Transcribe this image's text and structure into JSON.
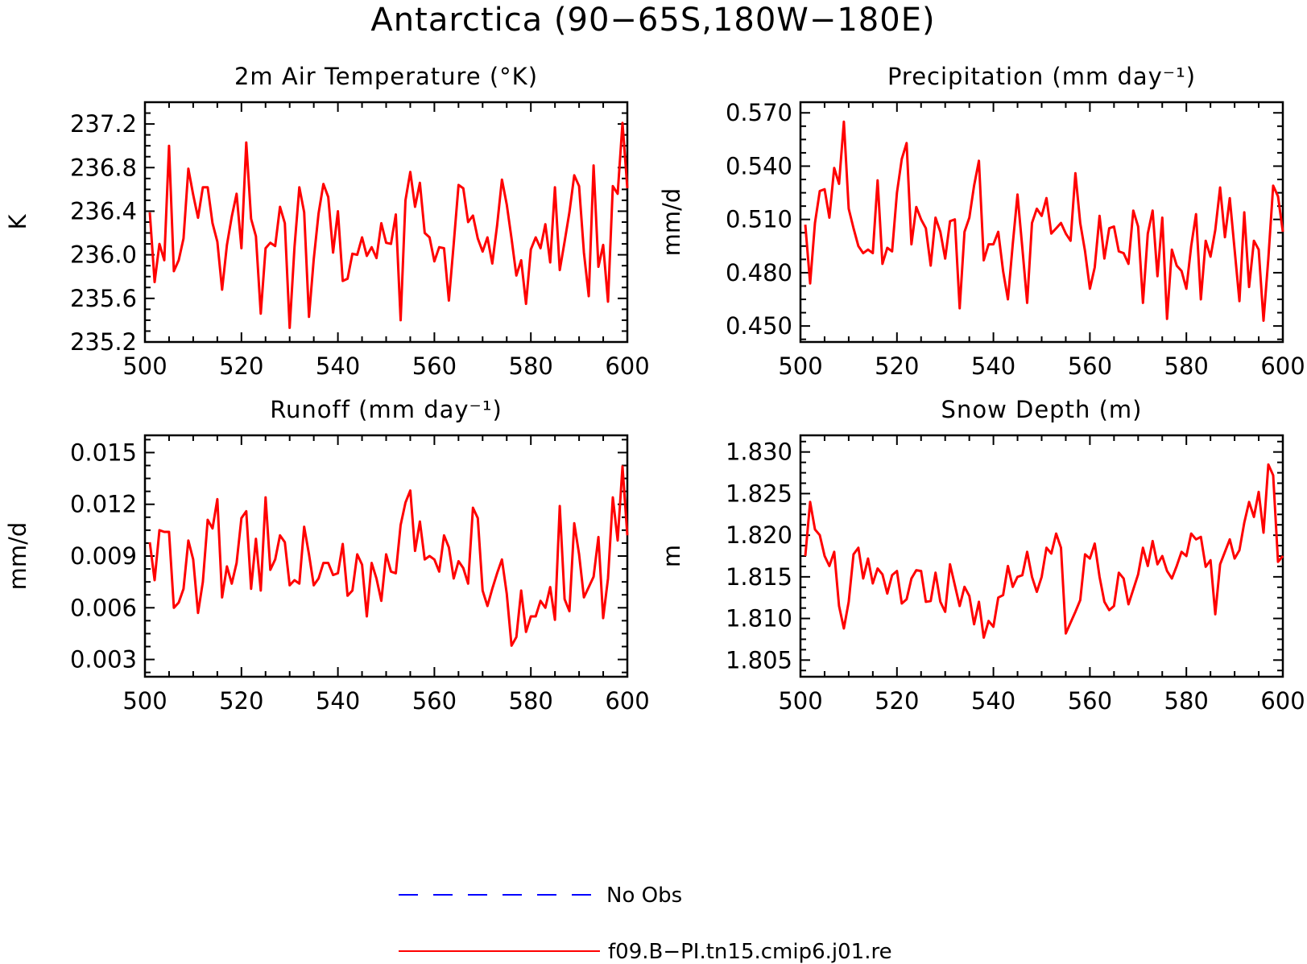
{
  "figure_title": "Antarctica (90−65S,180W−180E)",
  "colors": {
    "model": "#ff0000",
    "obs": "#0000ff",
    "frame": "#000000"
  },
  "legend": [
    {
      "label": "No Obs",
      "style": "dashed",
      "color": "#0000ff"
    },
    {
      "label": "f09.B−PI.tn15.cmip6.j01.re",
      "style": "solid",
      "color": "#ff0000"
    }
  ],
  "chart_data": [
    {
      "type": "line",
      "title": "2m Air Temperature (°K)",
      "ylabel": "K",
      "xlim": [
        500,
        600
      ],
      "ylim": [
        235.2,
        237.4
      ],
      "xticks": [
        500,
        520,
        540,
        560,
        580,
        600
      ],
      "xtick_labels": [
        "500",
        "520",
        "540",
        "560",
        "580",
        "600"
      ],
      "yticks": [
        235.2,
        235.6,
        236.0,
        236.4,
        236.8,
        237.2
      ],
      "ytick_labels": [
        "235.2",
        "235.6",
        "236.0",
        "236.4",
        "236.8",
        "237.2"
      ],
      "x_start": 501,
      "series": [
        {
          "color": "#ff0000",
          "values": [
            236.39,
            235.75,
            236.1,
            235.95,
            237.0,
            235.85,
            235.95,
            236.15,
            236.79,
            236.55,
            236.34,
            236.62,
            236.62,
            236.29,
            236.12,
            235.68,
            236.09,
            236.35,
            236.56,
            236.06,
            237.03,
            236.33,
            236.17,
            235.46,
            236.06,
            236.11,
            236.08,
            236.44,
            236.29,
            235.33,
            236.07,
            236.62,
            236.39,
            235.43,
            235.96,
            236.38,
            236.65,
            236.53,
            236.02,
            236.4,
            235.76,
            235.78,
            236.01,
            236.0,
            236.16,
            235.99,
            236.07,
            235.97,
            236.29,
            236.11,
            236.1,
            236.37,
            235.4,
            236.5,
            236.76,
            236.44,
            236.66,
            236.2,
            236.16,
            235.94,
            236.07,
            236.06,
            235.58,
            236.1,
            236.64,
            236.61,
            236.3,
            236.36,
            236.15,
            236.03,
            236.16,
            235.92,
            236.27,
            236.69,
            236.46,
            236.15,
            235.81,
            235.95,
            235.55,
            236.05,
            236.16,
            236.06,
            236.28,
            235.93,
            236.62,
            235.86,
            236.12,
            236.39,
            236.73,
            236.63,
            236.02,
            235.62,
            236.82,
            235.89,
            236.09,
            235.57,
            236.63,
            236.56,
            237.21,
            236.61
          ]
        }
      ]
    },
    {
      "type": "line",
      "title": "Precipitation (mm day⁻¹)",
      "ylabel": "mm/d",
      "xlim": [
        500,
        600
      ],
      "ylim": [
        0.441,
        0.576
      ],
      "xticks": [
        500,
        520,
        540,
        560,
        580,
        600
      ],
      "xtick_labels": [
        "500",
        "520",
        "540",
        "560",
        "580",
        "600"
      ],
      "yticks": [
        0.45,
        0.48,
        0.51,
        0.54,
        0.57
      ],
      "ytick_labels": [
        "0.450",
        "0.480",
        "0.510",
        "0.540",
        "0.570"
      ],
      "x_start": 501,
      "series": [
        {
          "color": "#ff0000",
          "values": [
            0.507,
            0.474,
            0.508,
            0.526,
            0.527,
            0.511,
            0.539,
            0.53,
            0.565,
            0.516,
            0.505,
            0.495,
            0.491,
            0.493,
            0.491,
            0.532,
            0.485,
            0.494,
            0.492,
            0.525,
            0.544,
            0.553,
            0.496,
            0.517,
            0.51,
            0.505,
            0.484,
            0.511,
            0.503,
            0.488,
            0.509,
            0.51,
            0.46,
            0.503,
            0.511,
            0.529,
            0.543,
            0.487,
            0.496,
            0.496,
            0.503,
            0.481,
            0.465,
            0.496,
            0.524,
            0.494,
            0.463,
            0.508,
            0.516,
            0.512,
            0.522,
            0.502,
            0.505,
            0.508,
            0.502,
            0.498,
            0.536,
            0.508,
            0.492,
            0.471,
            0.483,
            0.512,
            0.488,
            0.505,
            0.506,
            0.492,
            0.491,
            0.485,
            0.515,
            0.506,
            0.463,
            0.502,
            0.515,
            0.478,
            0.511,
            0.454,
            0.493,
            0.484,
            0.481,
            0.471,
            0.495,
            0.513,
            0.465,
            0.498,
            0.489,
            0.504,
            0.528,
            0.5,
            0.522,
            0.493,
            0.464,
            0.514,
            0.472,
            0.498,
            0.493,
            0.453,
            0.488,
            0.529,
            0.523,
            0.503
          ]
        }
      ]
    },
    {
      "type": "line",
      "title": "Runoff (mm day⁻¹)",
      "ylabel": "mm/d",
      "xlim": [
        500,
        600
      ],
      "ylim": [
        0.002,
        0.016
      ],
      "xticks": [
        500,
        520,
        540,
        560,
        580,
        600
      ],
      "xtick_labels": [
        "500",
        "520",
        "540",
        "560",
        "580",
        "600"
      ],
      "yticks": [
        0.003,
        0.006,
        0.009,
        0.012,
        0.015
      ],
      "ytick_labels": [
        "0.003",
        "0.006",
        "0.009",
        "0.012",
        "0.015"
      ],
      "x_start": 501,
      "series": [
        {
          "color": "#ff0000",
          "values": [
            0.0098,
            0.0076,
            0.0105,
            0.0104,
            0.0104,
            0.006,
            0.0063,
            0.0071,
            0.0099,
            0.0088,
            0.0057,
            0.0075,
            0.0111,
            0.0106,
            0.0123,
            0.0066,
            0.0084,
            0.0074,
            0.0086,
            0.0112,
            0.0116,
            0.0071,
            0.01,
            0.007,
            0.0124,
            0.0082,
            0.0088,
            0.0102,
            0.0098,
            0.0073,
            0.0076,
            0.0074,
            0.0107,
            0.0091,
            0.0073,
            0.0077,
            0.0086,
            0.0086,
            0.0079,
            0.008,
            0.0097,
            0.0067,
            0.007,
            0.0091,
            0.0085,
            0.0055,
            0.0086,
            0.0077,
            0.0064,
            0.0091,
            0.0081,
            0.008,
            0.0108,
            0.0121,
            0.0128,
            0.0093,
            0.011,
            0.0088,
            0.009,
            0.0088,
            0.0081,
            0.0102,
            0.0095,
            0.0077,
            0.0087,
            0.0083,
            0.0074,
            0.0118,
            0.0112,
            0.007,
            0.0061,
            0.0071,
            0.008,
            0.0088,
            0.0068,
            0.0038,
            0.0043,
            0.007,
            0.0046,
            0.0055,
            0.0055,
            0.0064,
            0.006,
            0.0072,
            0.0053,
            0.0119,
            0.0065,
            0.0058,
            0.0109,
            0.0091,
            0.0066,
            0.0072,
            0.0078,
            0.0101,
            0.0054,
            0.0077,
            0.0124,
            0.0099,
            0.0142,
            0.0102
          ]
        }
      ]
    },
    {
      "type": "line",
      "title": "Snow Depth (m)",
      "ylabel": "m",
      "xlim": [
        500,
        600
      ],
      "ylim": [
        1.803,
        1.832
      ],
      "xticks": [
        500,
        520,
        540,
        560,
        580,
        600
      ],
      "xtick_labels": [
        "500",
        "520",
        "540",
        "560",
        "580",
        "600"
      ],
      "yticks": [
        1.805,
        1.81,
        1.815,
        1.82,
        1.825,
        1.83
      ],
      "ytick_labels": [
        "1.805",
        "1.810",
        "1.815",
        "1.820",
        "1.825",
        "1.830"
      ],
      "x_start": 501,
      "series": [
        {
          "color": "#ff0000",
          "values": [
            1.8175,
            1.824,
            1.8207,
            1.82,
            1.8175,
            1.8163,
            1.818,
            1.8115,
            1.8088,
            1.812,
            1.8177,
            1.8185,
            1.8148,
            1.8172,
            1.8142,
            1.816,
            1.8153,
            1.813,
            1.8152,
            1.8157,
            1.8118,
            1.8123,
            1.8148,
            1.8158,
            1.8157,
            1.812,
            1.8121,
            1.8155,
            1.812,
            1.8108,
            1.8165,
            1.814,
            1.8115,
            1.8138,
            1.8127,
            1.8093,
            1.812,
            1.8077,
            1.8097,
            1.809,
            1.8125,
            1.8128,
            1.8163,
            1.8138,
            1.815,
            1.8152,
            1.818,
            1.815,
            1.8132,
            1.815,
            1.8185,
            1.8178,
            1.8202,
            1.8185,
            1.8082,
            1.8095,
            1.8108,
            1.8122,
            1.8177,
            1.8172,
            1.819,
            1.815,
            1.812,
            1.811,
            1.8115,
            1.8155,
            1.8148,
            1.8117,
            1.8135,
            1.8153,
            1.8185,
            1.8163,
            1.8193,
            1.8165,
            1.8175,
            1.8157,
            1.8148,
            1.8163,
            1.818,
            1.8175,
            1.8202,
            1.8195,
            1.8198,
            1.8162,
            1.817,
            1.8105,
            1.8165,
            1.818,
            1.8195,
            1.8172,
            1.8182,
            1.8215,
            1.824,
            1.8222,
            1.8252,
            1.8203,
            1.8285,
            1.8272,
            1.8168,
            1.8175
          ]
        }
      ]
    }
  ]
}
